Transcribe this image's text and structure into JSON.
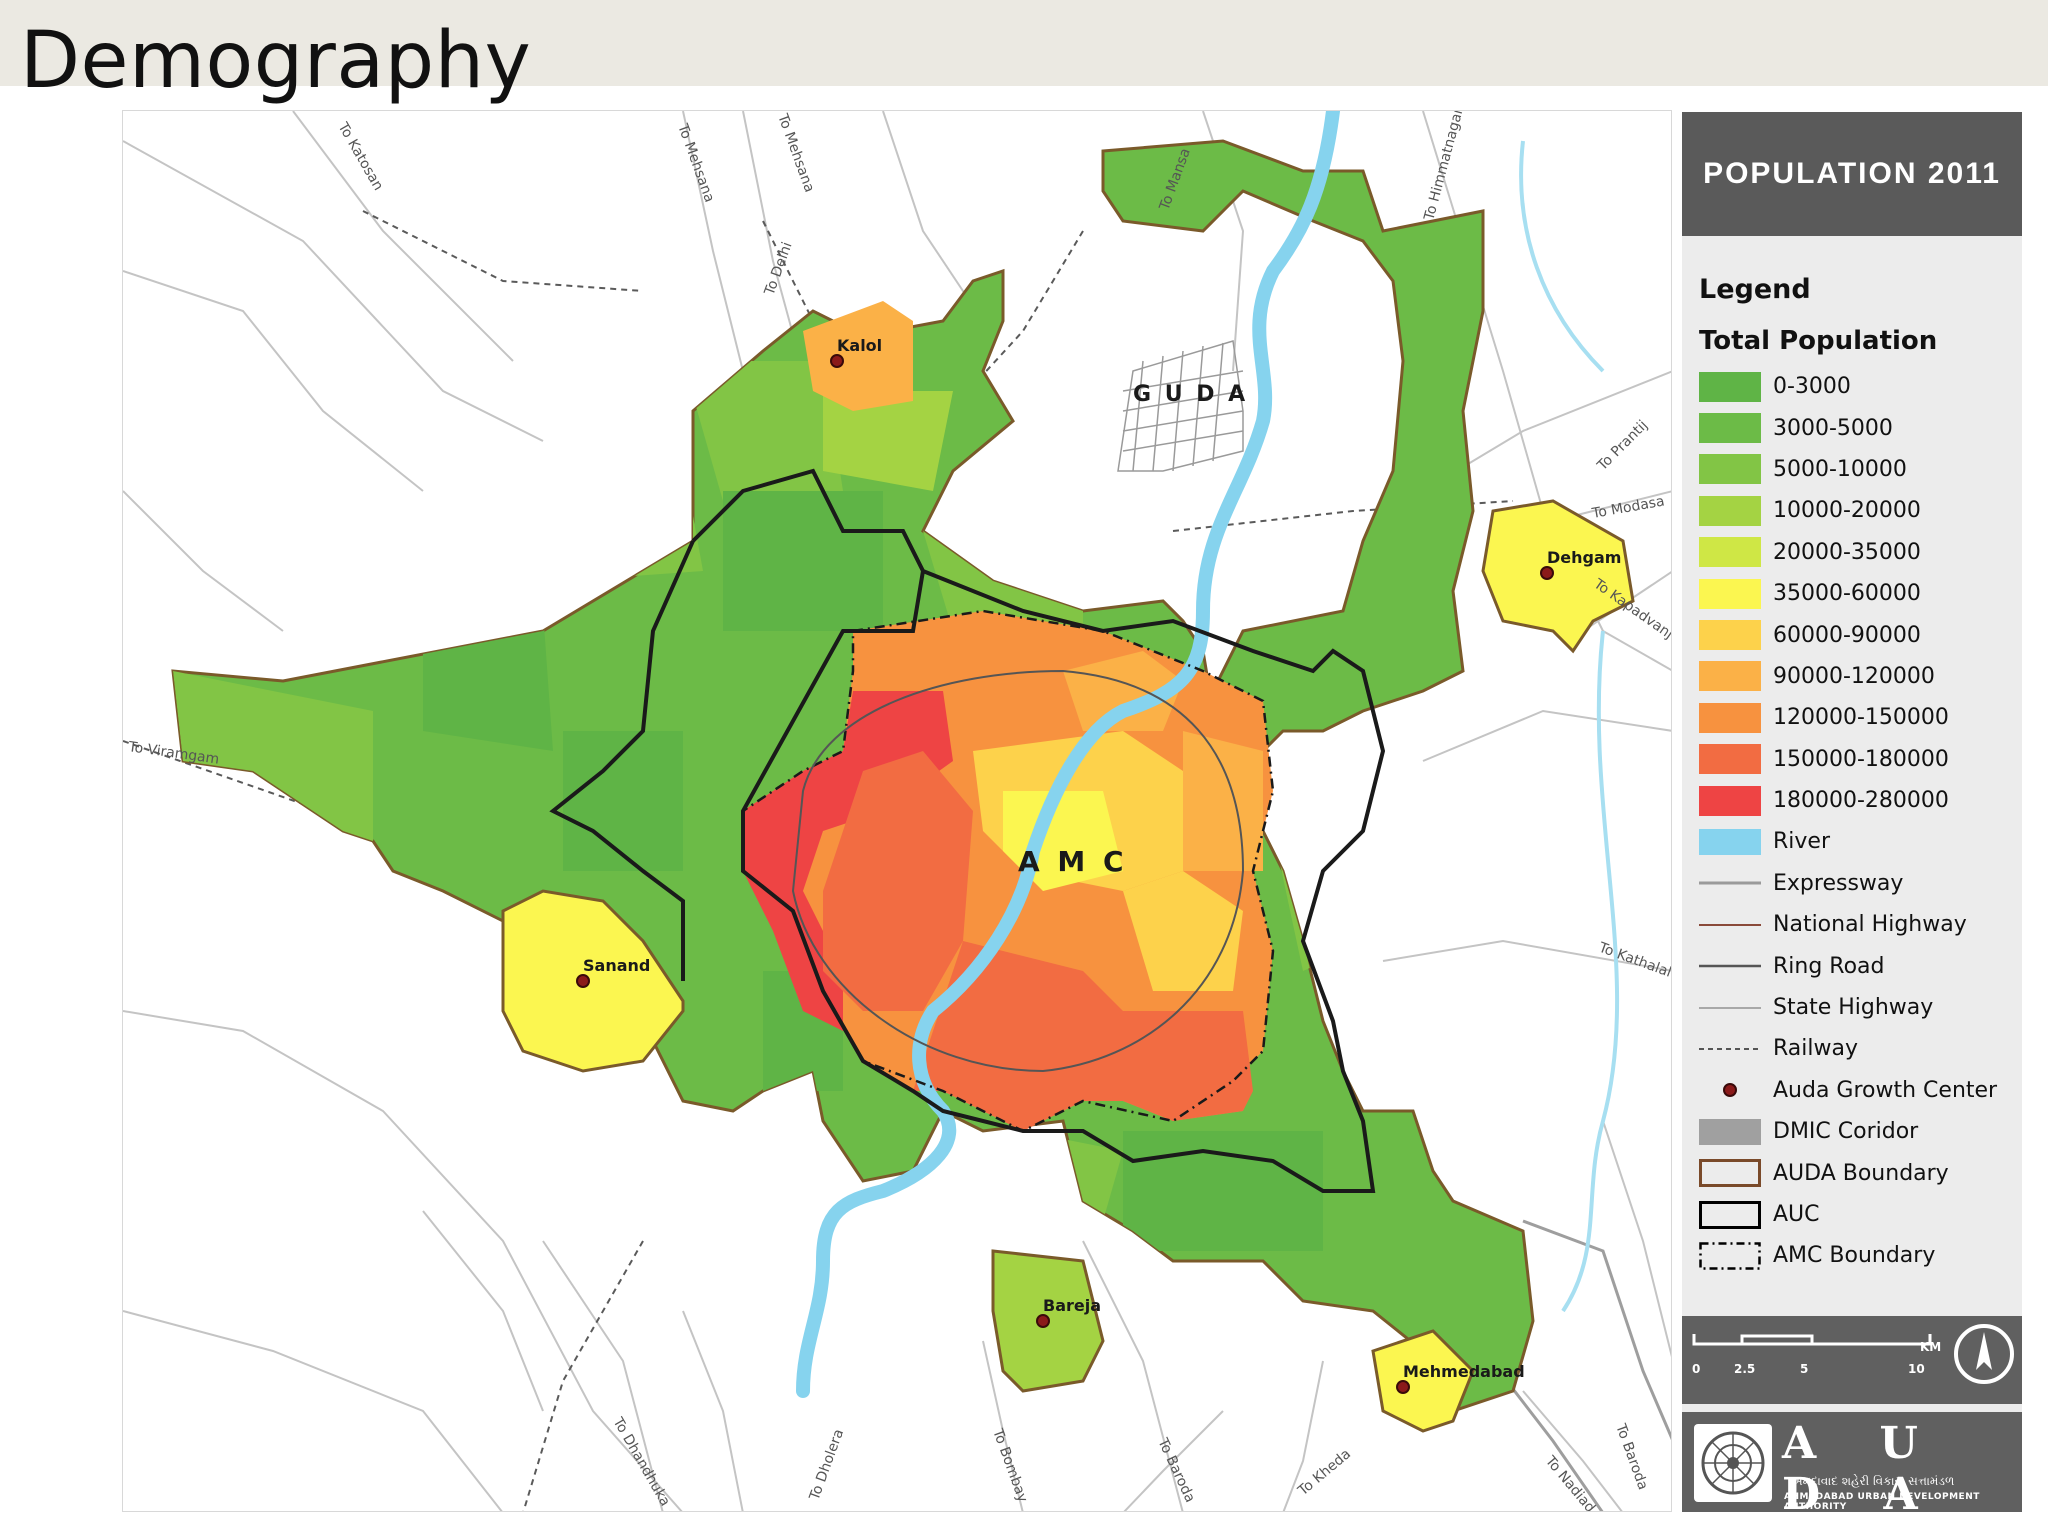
{
  "slide": {
    "title": "Demography"
  },
  "panel": {
    "header": "POPULATION 2011",
    "legend_title": "Legend",
    "legend_subtitle": "Total Population",
    "population_classes": [
      {
        "label": "0-3000",
        "color": "#5fb446"
      },
      {
        "label": "3000-5000",
        "color": "#6cbb47"
      },
      {
        "label": "5000-10000",
        "color": "#82c545"
      },
      {
        "label": "10000-20000",
        "color": "#a4d343"
      },
      {
        "label": "20000-35000",
        "color": "#cfe745"
      },
      {
        "label": "35000-60000",
        "color": "#fbf650"
      },
      {
        "label": "60000-90000",
        "color": "#fdd24b"
      },
      {
        "label": "90000-120000",
        "color": "#fbb147"
      },
      {
        "label": "120000-150000",
        "color": "#f7923f"
      },
      {
        "label": "150000-180000",
        "color": "#f26c42"
      },
      {
        "label": "180000-280000",
        "color": "#ee4444"
      }
    ],
    "other_features": [
      {
        "label": "River",
        "icon": "river-swatch",
        "color": "#86d3ee"
      },
      {
        "label": "Expressway",
        "icon": "expressway-line",
        "color": "#9a9a9a"
      },
      {
        "label": "National Highway",
        "icon": "national-highway-line",
        "color": "#8a4a3a"
      },
      {
        "label": "Ring Road",
        "icon": "ring-road-line",
        "color": "#555555"
      },
      {
        "label": "State Highway",
        "icon": "state-highway-line",
        "color": "#a8a8a8"
      },
      {
        "label": "Railway",
        "icon": "railway-dashed-line",
        "color": "#555555"
      },
      {
        "label": "Auda Growth Center",
        "icon": "growth-center-dot",
        "color": "#8b1a1a"
      },
      {
        "label": "DMIC Coridor",
        "icon": "dmic-swatch",
        "color": "#a0a0a0"
      },
      {
        "label": "AUDA Boundary",
        "icon": "auda-boundary-box",
        "color": "#7a4a2a"
      },
      {
        "label": "AUC",
        "icon": "auc-box",
        "color": "#000000"
      },
      {
        "label": "AMC Boundary",
        "icon": "amc-boundary-dashed-box",
        "color": "#000000"
      }
    ],
    "scale": {
      "ticks": [
        "0",
        "2.5",
        "5",
        "10"
      ],
      "unit": "KM"
    },
    "logo": {
      "name": "A U D A",
      "name_gujarati": "અમદાવાદ શહેરી વિકાસ સત્તામંડળ",
      "name_english": "AHMEDABAD URBAN DEVELOPMENT AUTHORITY"
    }
  },
  "map": {
    "labels": {
      "amc": "A M C",
      "guda": "G U D A",
      "kalol": "Kalol",
      "dehgam": "Dehgam",
      "sanand": "Sanand",
      "bareja": "Bareja",
      "mehmedabad": "Mehmedabad"
    },
    "road_labels": {
      "katosan": "To Katosan",
      "mehsana_1": "To Mehsana",
      "mehsana_2": "To Mehsana",
      "delhi": "To Delhi",
      "mansa": "To Mansa",
      "himmatnagar": "To Himmatnagar",
      "prantij": "To Prantij",
      "modasa": "To Modasa",
      "kapadvanj": "To Kapadvanj",
      "viramgam": "To Viramgam",
      "kathalal": "To Kathalal",
      "dhandhuka": "To Dhandhuka",
      "dholera": "To Dholera",
      "bombay": "To Bombay",
      "baroda_1": "To Baroda",
      "kheda": "To Kheda",
      "nadiad": "To Nadiad",
      "baroda_2": "To Baroda"
    }
  }
}
